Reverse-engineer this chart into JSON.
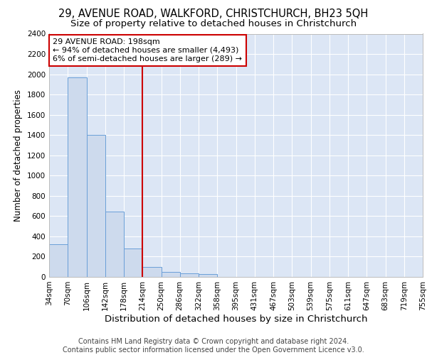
{
  "title_line1": "29, AVENUE ROAD, WALKFORD, CHRISTCHURCH, BH23 5QH",
  "title_line2": "Size of property relative to detached houses in Christchurch",
  "xlabel": "Distribution of detached houses by size in Christchurch",
  "ylabel": "Number of detached properties",
  "bar_values": [
    320,
    1970,
    1400,
    645,
    280,
    100,
    50,
    35,
    25,
    0,
    0,
    0,
    0,
    0,
    0,
    0,
    0,
    0,
    0,
    0
  ],
  "categories": [
    "34sqm",
    "70sqm",
    "106sqm",
    "142sqm",
    "178sqm",
    "214sqm",
    "250sqm",
    "286sqm",
    "322sqm",
    "358sqm",
    "395sqm",
    "431sqm",
    "467sqm",
    "503sqm",
    "539sqm",
    "575sqm",
    "611sqm",
    "647sqm",
    "683sqm",
    "719sqm",
    "755sqm"
  ],
  "bar_color": "#cddaed",
  "bar_edge_color": "#6a9fd8",
  "annotation_text": "29 AVENUE ROAD: 198sqm\n← 94% of detached houses are smaller (4,493)\n6% of semi-detached houses are larger (289) →",
  "annotation_box_color": "#ffffff",
  "annotation_box_edge_color": "#cc0000",
  "red_line_color": "#cc0000",
  "ylim": [
    0,
    2400
  ],
  "yticks": [
    0,
    200,
    400,
    600,
    800,
    1000,
    1200,
    1400,
    1600,
    1800,
    2000,
    2200,
    2400
  ],
  "background_color": "#dce6f5",
  "footer_line1": "Contains HM Land Registry data © Crown copyright and database right 2024.",
  "footer_line2": "Contains public sector information licensed under the Open Government Licence v3.0.",
  "title_fontsize": 10.5,
  "subtitle_fontsize": 9.5,
  "xlabel_fontsize": 9.5,
  "ylabel_fontsize": 8.5,
  "tick_fontsize": 7.5,
  "footer_fontsize": 7,
  "annot_fontsize": 8
}
